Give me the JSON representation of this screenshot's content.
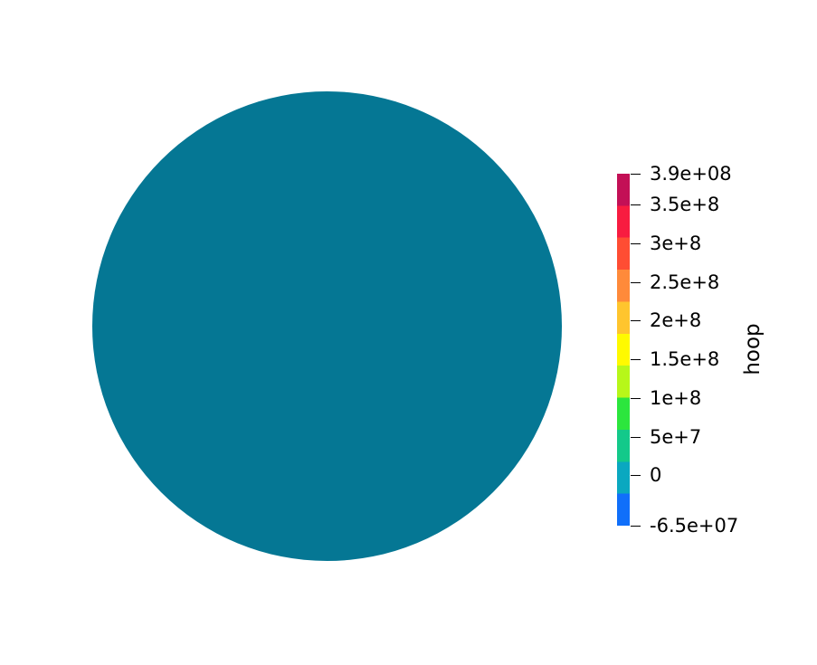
{
  "colors": {
    "field": "#057794",
    "background": "#ffffff",
    "colormap": [
      "#106ffa",
      "#0aa8c0",
      "#13c98a",
      "#2ce63d",
      "#b7f719",
      "#fffa00",
      "#ffc52e",
      "#ff8a3a",
      "#ff4d33",
      "#f81c40",
      "#c31056"
    ]
  },
  "field": {
    "name": "hoop",
    "uniform_value": 0
  },
  "colorbar": {
    "title": "hoop",
    "range": [
      -65000000,
      390000000
    ],
    "ticks": [
      {
        "value": 390000000,
        "label": "3.9e+08"
      },
      {
        "value": 350000000,
        "label": "3.5e+8"
      },
      {
        "value": 300000000,
        "label": "3e+8"
      },
      {
        "value": 250000000,
        "label": "2.5e+8"
      },
      {
        "value": 200000000,
        "label": "2e+8"
      },
      {
        "value": 150000000,
        "label": "1.5e+8"
      },
      {
        "value": 100000000,
        "label": "1e+8"
      },
      {
        "value": 50000000,
        "label": "5e+7"
      },
      {
        "value": 0,
        "label": "0"
      },
      {
        "value": -65000000,
        "label": "-6.5e+07"
      }
    ]
  }
}
